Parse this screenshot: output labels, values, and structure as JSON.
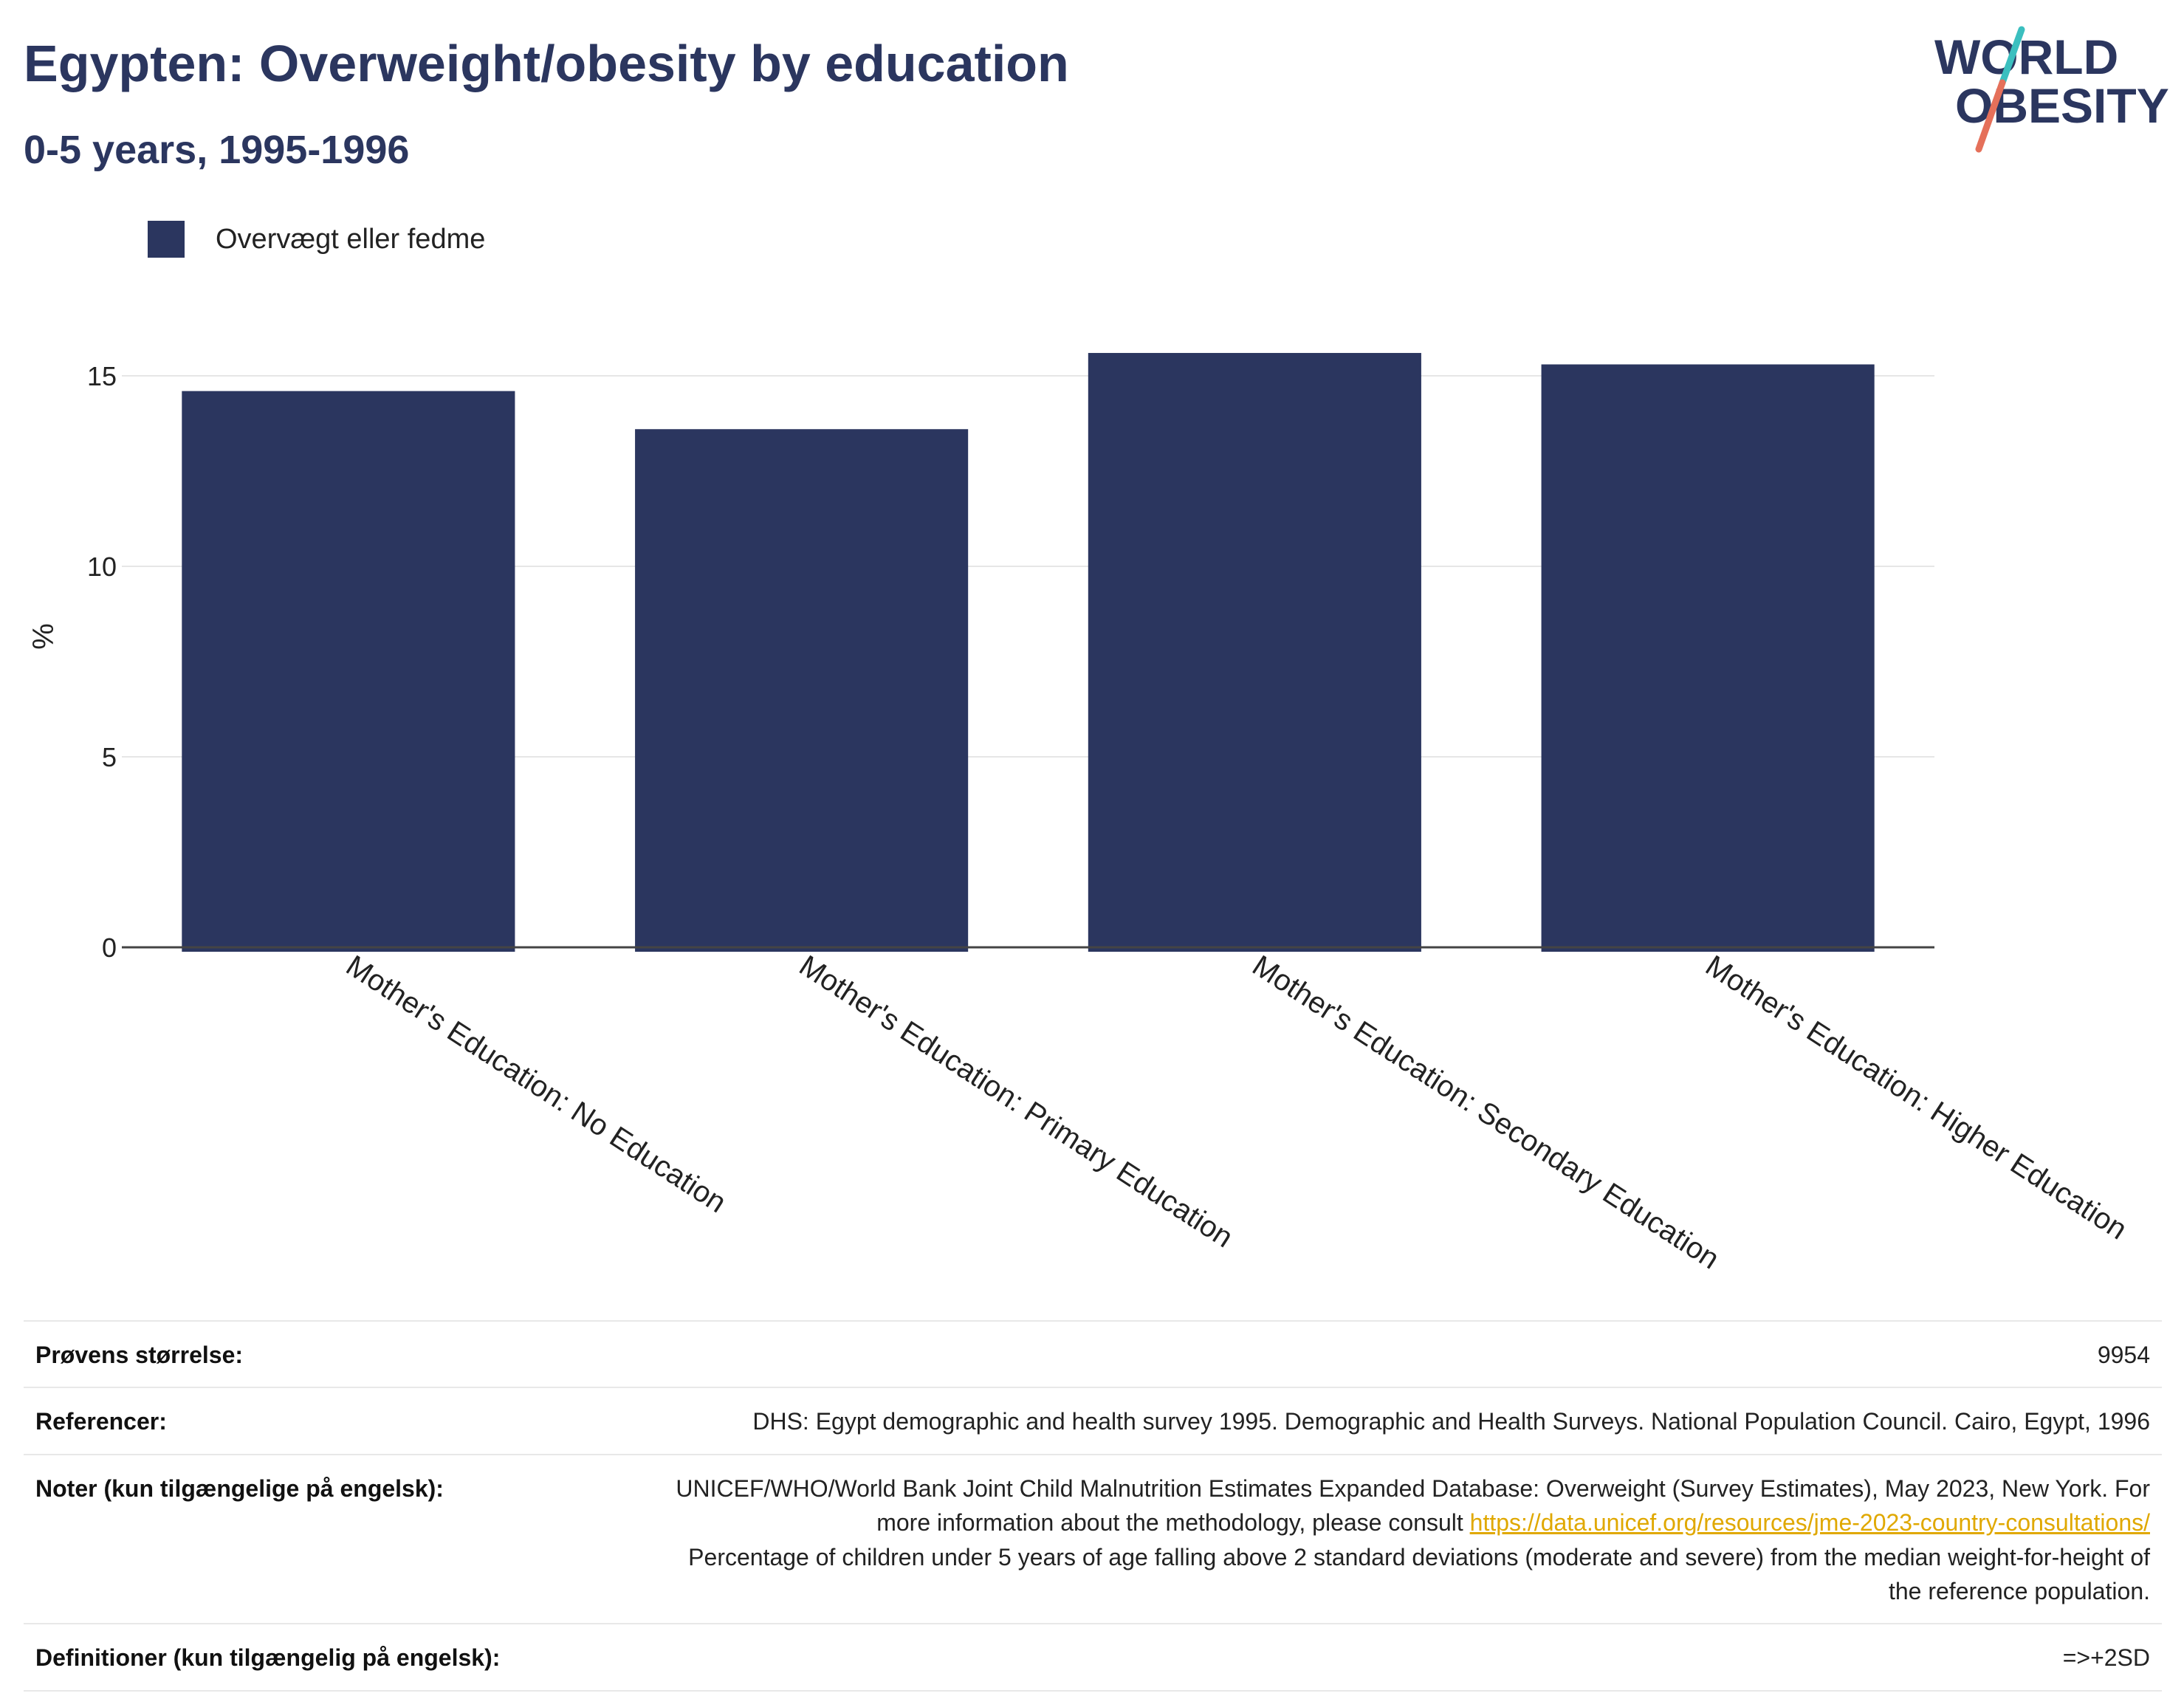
{
  "header": {
    "title": "Egypten: Overweight/obesity by education",
    "subtitle": "0-5 years, 1995-1996"
  },
  "logo": {
    "line1": "WORLD",
    "line2": "OBESITY",
    "colors": {
      "text": "#2b365f",
      "slash_top": "#3bbfbf",
      "slash_bottom": "#e5705a"
    }
  },
  "colors": {
    "bar": "#2b365f",
    "grid": "#e6e6e6",
    "axis": "#444444",
    "link": "#e0a800"
  },
  "chart_data": {
    "type": "bar",
    "categories": [
      "Mother's Education: No Education",
      "Mother's Education: Primary Education",
      "Mother's Education: Secondary Education",
      "Mother's Education: Higher Education"
    ],
    "series": [
      {
        "name": "Overvægt eller fedme",
        "values": [
          14.6,
          13.6,
          15.6,
          15.3
        ]
      }
    ],
    "ylabel": "%",
    "ylim": [
      0,
      17
    ],
    "yticks": [
      0,
      5,
      10,
      15
    ],
    "grid": true,
    "legend": "top-left"
  },
  "info": {
    "sample_label": "Prøvens størrelse:",
    "sample_value": "9954",
    "references_label": "Referencer:",
    "references_value": "DHS: Egypt demographic and health survey 1995. Demographic and Health Surveys. National Population Council. Cairo, Egypt, 1996",
    "notes_label": "Noter (kun tilgængelige på engelsk):",
    "notes_text_before": "UNICEF/WHO/World Bank Joint Child Malnutrition Estimates Expanded Database: Overweight (Survey Estimates), May 2023, New York. For more information about the methodology, please consult ",
    "notes_link": "https://data.unicef.org/resources/jme-2023-country-consultations/",
    "notes_text_after": "Percentage of children under 5 years of age falling above 2 standard deviations (moderate and severe) from the median weight-for-height of the reference population.",
    "definitions_label": "Definitioner (kun tilgængelig på engelsk):",
    "definitions_value": "=>+2SD"
  }
}
